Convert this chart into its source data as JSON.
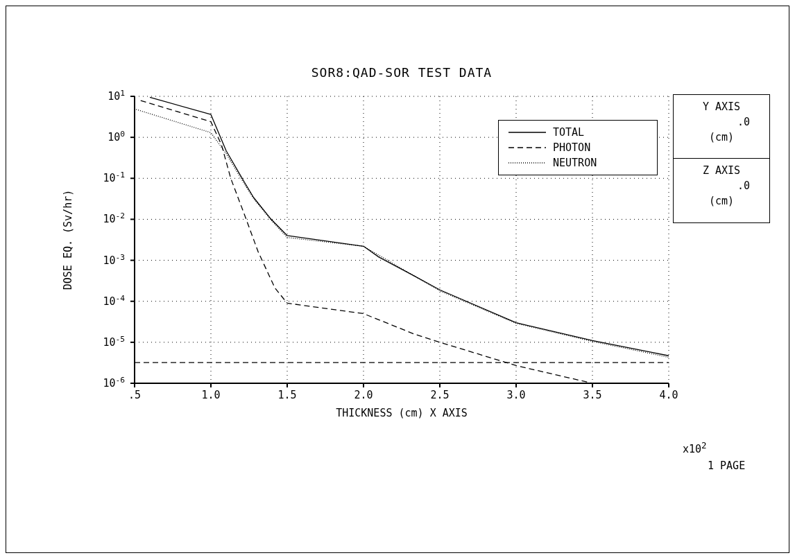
{
  "chart_data": {
    "type": "line",
    "title": "SOR8:QAD-SOR TEST DATA",
    "xlabel": "THICKNESS (cm)   X AXIS",
    "ylabel": "DOSE EQ.  (Sv/hr)",
    "log": "y",
    "grid": true,
    "legend": "top right",
    "marker": "none",
    "xlim": [
      0.5,
      4.0
    ],
    "xticks": [
      {
        "value": 0.5,
        "label": ".5"
      },
      {
        "value": 1.0,
        "label": "1.0"
      },
      {
        "value": 1.5,
        "label": "1.5"
      },
      {
        "value": 2.0,
        "label": "2.0"
      },
      {
        "value": 2.5,
        "label": "2.5"
      },
      {
        "value": 3.0,
        "label": "3.0"
      },
      {
        "value": 3.5,
        "label": "3.5"
      },
      {
        "value": 4.0,
        "label": "4.0"
      }
    ],
    "ylim": [
      1e-06,
      10
    ],
    "yticks": [
      {
        "value": 10,
        "label": "10$^{1}$"
      },
      {
        "value": 1,
        "label": "10$^{0}$"
      },
      {
        "value": 0.1,
        "label": "10$^{-1}$"
      },
      {
        "value": 0.01,
        "label": "10$^{-2}$"
      },
      {
        "value": 0.001,
        "label": "10$^{-3}$"
      },
      {
        "value": 0.0001,
        "label": "10$^{-4}$"
      },
      {
        "value": 1e-05,
        "label": "10$^{-5}$"
      },
      {
        "value": 1e-06,
        "label": "10$^{-6}$"
      }
    ],
    "series": [
      {
        "name": "TOTAL",
        "color": "#000000",
        "line_style": "solid",
        "x": [
          0.6,
          1.0,
          1.1,
          1.22,
          1.28,
          1.39,
          1.5,
          2.0,
          2.1,
          2.33,
          2.5,
          3.0,
          3.5,
          4.0
        ],
        "values": [
          9.5,
          3.6,
          0.47,
          0.08,
          0.034,
          0.0105,
          0.004,
          0.0022,
          0.0012,
          0.00042,
          0.00019,
          3e-05,
          1.1e-05,
          4.7e-06
        ]
      },
      {
        "name": "PHOTON",
        "color": "#000000",
        "line_style": "dashed",
        "x": [
          0.54,
          1.0,
          1.07,
          1.13,
          1.22,
          1.31,
          1.42,
          1.5,
          2.0,
          2.33,
          2.5,
          3.0,
          3.5
        ],
        "values": [
          7.9,
          2.4,
          0.65,
          0.1,
          0.013,
          0.0016,
          0.00021,
          9e-05,
          5e-05,
          1.6e-05,
          1e-05,
          2.7e-06,
          1e-06
        ]
      },
      {
        "name": "NEUTRON",
        "color": "#000000",
        "line_style": "dotted",
        "x": [
          0.51,
          1.0,
          1.1,
          1.22,
          1.28,
          1.39,
          1.5,
          2.0,
          2.5,
          3.0,
          3.5,
          4.0
        ],
        "values": [
          4.8,
          1.3,
          0.4,
          0.072,
          0.032,
          0.01,
          0.0036,
          0.0022,
          0.00018,
          2.9e-05,
          1.05e-05,
          4.3e-06
        ]
      }
    ],
    "ref_lines": [
      {
        "axis": "y",
        "value": 3.2e-06,
        "line_style": "dashed",
        "color": "#000000"
      }
    ],
    "annotations": [
      "x10$^{2}$",
      "1 PAGE",
      "Y AXIS",
      ".0",
      "(cm)",
      "Z AXIS",
      ".0",
      "(cm)"
    ]
  }
}
